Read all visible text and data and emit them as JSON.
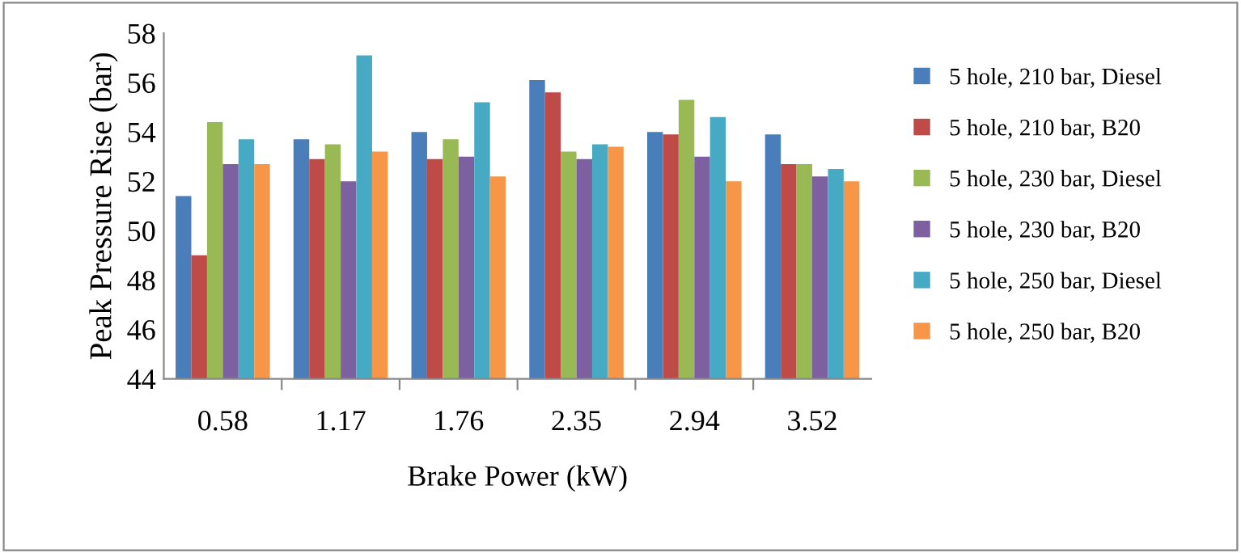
{
  "chart_data": {
    "type": "bar",
    "xlabel": "Brake Power (kW)",
    "ylabel": "Peak Pressure Rise (bar)",
    "categories": [
      "0.58",
      "1.17",
      "1.76",
      "2.35",
      "2.94",
      "3.52"
    ],
    "ylim": [
      44,
      58
    ],
    "yticks": [
      44,
      46,
      48,
      50,
      52,
      54,
      56,
      58
    ],
    "grid": false,
    "legend": "right",
    "series": [
      {
        "name": "5 hole, 210 bar, Diesel",
        "color": "#4a7ebb",
        "values": [
          51.4,
          53.7,
          54.0,
          56.1,
          54.0,
          53.9
        ]
      },
      {
        "name": "5 hole, 210 bar, B20",
        "color": "#be4b48",
        "values": [
          49.0,
          52.9,
          52.9,
          55.6,
          53.9,
          52.7
        ]
      },
      {
        "name": "5 hole, 230 bar, Diesel",
        "color": "#98b954",
        "values": [
          54.4,
          53.5,
          53.7,
          53.2,
          55.3,
          52.7
        ]
      },
      {
        "name": "5 hole, 230 bar, B20",
        "color": "#7d60a0",
        "values": [
          52.7,
          52.0,
          53.0,
          52.9,
          53.0,
          52.2
        ]
      },
      {
        "name": "5 hole, 250 bar, Diesel",
        "color": "#46aac5",
        "values": [
          53.7,
          57.1,
          55.2,
          53.5,
          54.6,
          52.5
        ]
      },
      {
        "name": "5 hole, 250 bar, B20",
        "color": "#f79646",
        "values": [
          52.7,
          53.2,
          52.2,
          53.4,
          52.0,
          52.0
        ]
      }
    ]
  }
}
